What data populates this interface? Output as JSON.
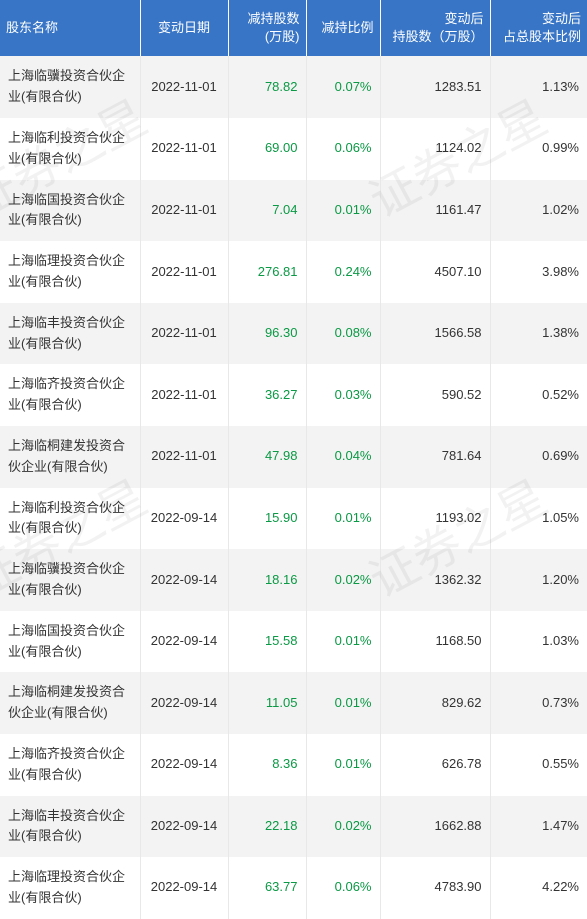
{
  "watermark": "证券之星",
  "colors": {
    "header_bg": "#3875c6",
    "header_fg": "#ffffff",
    "row_odd_bg": "#f3f3f3",
    "row_even_bg": "#ffffff",
    "text": "#333333",
    "green": "#0a9944",
    "border": "#e8e8e8"
  },
  "headers": {
    "name": "股东名称",
    "date": "变动日期",
    "shares": "减持股数\n(万股)",
    "ratio": "减持比例",
    "after_shares": "变动后\n持股数（万股）",
    "after_ratio": "变动后\n占总股本比例"
  },
  "rows": [
    {
      "name": "上海临骥投资合伙企业(有限合伙)",
      "date": "2022-11-01",
      "shares": "78.82",
      "ratio": "0.07%",
      "after_shares": "1283.51",
      "after_ratio": "1.13%"
    },
    {
      "name": "上海临利投资合伙企业(有限合伙)",
      "date": "2022-11-01",
      "shares": "69.00",
      "ratio": "0.06%",
      "after_shares": "1124.02",
      "after_ratio": "0.99%"
    },
    {
      "name": "上海临国投资合伙企业(有限合伙)",
      "date": "2022-11-01",
      "shares": "7.04",
      "ratio": "0.01%",
      "after_shares": "1161.47",
      "after_ratio": "1.02%"
    },
    {
      "name": "上海临理投资合伙企业(有限合伙)",
      "date": "2022-11-01",
      "shares": "276.81",
      "ratio": "0.24%",
      "after_shares": "4507.10",
      "after_ratio": "3.98%"
    },
    {
      "name": "上海临丰投资合伙企业(有限合伙)",
      "date": "2022-11-01",
      "shares": "96.30",
      "ratio": "0.08%",
      "after_shares": "1566.58",
      "after_ratio": "1.38%"
    },
    {
      "name": "上海临齐投资合伙企业(有限合伙)",
      "date": "2022-11-01",
      "shares": "36.27",
      "ratio": "0.03%",
      "after_shares": "590.52",
      "after_ratio": "0.52%"
    },
    {
      "name": "上海临桐建发投资合伙企业(有限合伙)",
      "date": "2022-11-01",
      "shares": "47.98",
      "ratio": "0.04%",
      "after_shares": "781.64",
      "after_ratio": "0.69%"
    },
    {
      "name": "上海临利投资合伙企业(有限合伙)",
      "date": "2022-09-14",
      "shares": "15.90",
      "ratio": "0.01%",
      "after_shares": "1193.02",
      "after_ratio": "1.05%"
    },
    {
      "name": "上海临骥投资合伙企业(有限合伙)",
      "date": "2022-09-14",
      "shares": "18.16",
      "ratio": "0.02%",
      "after_shares": "1362.32",
      "after_ratio": "1.20%"
    },
    {
      "name": "上海临国投资合伙企业(有限合伙)",
      "date": "2022-09-14",
      "shares": "15.58",
      "ratio": "0.01%",
      "after_shares": "1168.50",
      "after_ratio": "1.03%"
    },
    {
      "name": "上海临桐建发投资合伙企业(有限合伙)",
      "date": "2022-09-14",
      "shares": "11.05",
      "ratio": "0.01%",
      "after_shares": "829.62",
      "after_ratio": "0.73%"
    },
    {
      "name": "上海临齐投资合伙企业(有限合伙)",
      "date": "2022-09-14",
      "shares": "8.36",
      "ratio": "0.01%",
      "after_shares": "626.78",
      "after_ratio": "0.55%"
    },
    {
      "name": "上海临丰投资合伙企业(有限合伙)",
      "date": "2022-09-14",
      "shares": "22.18",
      "ratio": "0.02%",
      "after_shares": "1662.88",
      "after_ratio": "1.47%"
    },
    {
      "name": "上海临理投资合伙企业(有限合伙)",
      "date": "2022-09-14",
      "shares": "63.77",
      "ratio": "0.06%",
      "after_shares": "4783.90",
      "after_ratio": "4.22%"
    }
  ]
}
